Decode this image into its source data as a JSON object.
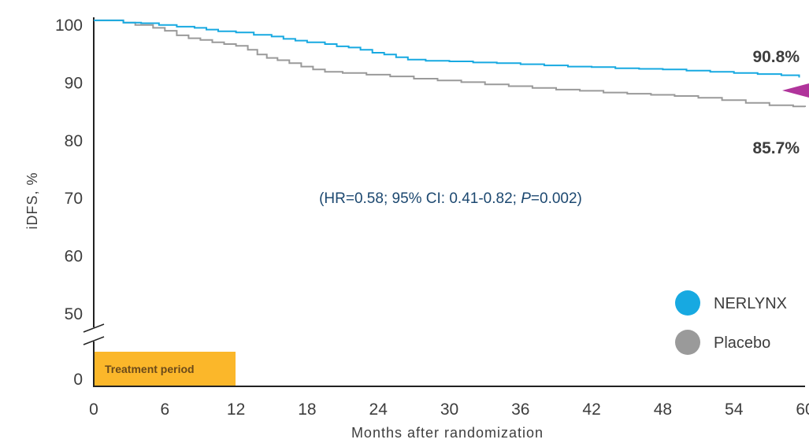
{
  "chart_data": {
    "type": "line",
    "xlabel": "Months after randomization",
    "ylabel": "iDFS, %",
    "x_ticks": [
      "0",
      "6",
      "12",
      "18",
      "24",
      "30",
      "36",
      "42",
      "48",
      "54",
      "60"
    ],
    "y_ticks": [
      "100",
      "90",
      "80",
      "70",
      "60",
      "50",
      "0"
    ],
    "xlim": [
      0,
      60
    ],
    "ylim": [
      0,
      100
    ],
    "axis_break": true,
    "annotation": {
      "prefix": "(HR=0.58; 95% CI: 0.41-0.82; ",
      "p_label": "P",
      "suffix": "=0.002)"
    },
    "period_label": "Treatment period",
    "period_range": [
      0,
      12
    ],
    "series": [
      {
        "name": "NERLYNX",
        "color": "#17a9e1",
        "end_label": "90.8%",
        "points": [
          [
            0,
            100.7
          ],
          [
            2.2,
            100.7
          ],
          [
            2.5,
            100.3
          ],
          [
            4,
            100.2
          ],
          [
            5.5,
            99.9
          ],
          [
            7,
            99.6
          ],
          [
            8.5,
            99.4
          ],
          [
            9.5,
            99.1
          ],
          [
            10.5,
            98.8
          ],
          [
            12,
            98.6
          ],
          [
            13.5,
            98.2
          ],
          [
            15,
            97.9
          ],
          [
            16,
            97.5
          ],
          [
            17,
            97.2
          ],
          [
            18,
            96.9
          ],
          [
            19.5,
            96.6
          ],
          [
            20.5,
            96.2
          ],
          [
            21.5,
            96.0
          ],
          [
            22.5,
            95.6
          ],
          [
            23.5,
            95.1
          ],
          [
            24.5,
            94.8
          ],
          [
            25.5,
            94.3
          ],
          [
            26.5,
            93.9
          ],
          [
            28,
            93.7
          ],
          [
            30,
            93.6
          ],
          [
            32,
            93.4
          ],
          [
            34,
            93.3
          ],
          [
            36,
            93.1
          ],
          [
            38,
            92.9
          ],
          [
            40,
            92.7
          ],
          [
            42,
            92.6
          ],
          [
            44,
            92.4
          ],
          [
            46,
            92.3
          ],
          [
            48,
            92.2
          ],
          [
            50,
            92.0
          ],
          [
            52,
            91.8
          ],
          [
            54,
            91.6
          ],
          [
            56,
            91.4
          ],
          [
            58,
            91.2
          ],
          [
            59.5,
            90.8
          ]
        ]
      },
      {
        "name": "Placebo",
        "color": "#9a9a9a",
        "end_label": "85.7%",
        "points": [
          [
            0,
            100.7
          ],
          [
            2.2,
            100.7
          ],
          [
            2.5,
            100.3
          ],
          [
            3.5,
            99.9
          ],
          [
            5,
            99.4
          ],
          [
            6,
            98.9
          ],
          [
            7,
            98.1
          ],
          [
            8,
            97.6
          ],
          [
            9,
            97.3
          ],
          [
            10,
            96.9
          ],
          [
            11,
            96.6
          ],
          [
            12,
            96.3
          ],
          [
            13,
            95.6
          ],
          [
            13.8,
            94.8
          ],
          [
            14.6,
            94.2
          ],
          [
            15.5,
            93.8
          ],
          [
            16.5,
            93.3
          ],
          [
            17.5,
            92.7
          ],
          [
            18.5,
            92.2
          ],
          [
            19.5,
            91.8
          ],
          [
            21,
            91.6
          ],
          [
            23,
            91.3
          ],
          [
            25,
            91.0
          ],
          [
            27,
            90.6
          ],
          [
            29,
            90.3
          ],
          [
            31,
            90.0
          ],
          [
            33,
            89.6
          ],
          [
            35,
            89.3
          ],
          [
            37,
            89.0
          ],
          [
            39,
            88.7
          ],
          [
            41,
            88.5
          ],
          [
            43,
            88.2
          ],
          [
            45,
            88.0
          ],
          [
            47,
            87.8
          ],
          [
            49,
            87.6
          ],
          [
            51,
            87.3
          ],
          [
            53,
            86.9
          ],
          [
            55,
            86.4
          ],
          [
            57,
            86.0
          ],
          [
            59,
            85.8
          ],
          [
            60,
            85.7
          ]
        ]
      }
    ],
    "marker_color": "#b0349b"
  }
}
